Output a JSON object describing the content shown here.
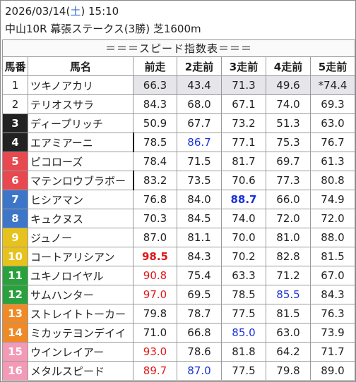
{
  "header": {
    "date": "2026/03/14",
    "weekday_open": "(",
    "weekday": "土",
    "weekday_close": ")",
    "time": "15:10",
    "race": "中山10R 幕張ステークス(3勝) 芝1600m"
  },
  "table": {
    "title": "＝＝＝スピード指数表＝＝＝",
    "columns": [
      "馬番",
      "馬名",
      "前走",
      "2走前",
      "3走前",
      "4走前",
      "5走前"
    ],
    "frame_colors": {
      "1": "#ffffff",
      "2": "#ffffff",
      "3": "#222222",
      "4": "#222222",
      "5": "#e8484f",
      "6": "#e8484f",
      "7": "#3d76c9",
      "8": "#3d76c9",
      "9": "#e8c21c",
      "10": "#e8c21c",
      "11": "#2aa13d",
      "12": "#2aa13d",
      "13": "#f08a26",
      "14": "#f08a26",
      "15": "#f39ab7",
      "16": "#f39ab7"
    },
    "rows": [
      {
        "no": "1",
        "name": "ツキノアカリ",
        "frame": "white",
        "v": [
          "66.3",
          "43.4",
          "71.3",
          "49.6",
          "*74.4"
        ],
        "style": [
          "",
          "",
          "",
          "",
          ""
        ]
      },
      {
        "no": "2",
        "name": "テリオスサラ",
        "frame": "white",
        "v": [
          "84.3",
          "68.0",
          "67.1",
          "74.0",
          "69.3"
        ],
        "style": [
          "",
          "",
          "",
          "",
          ""
        ]
      },
      {
        "no": "3",
        "name": "ディープリッチ",
        "frame": "black",
        "v": [
          "50.9",
          "67.7",
          "73.2",
          "51.3",
          "63.0"
        ],
        "style": [
          "",
          "",
          "",
          "",
          ""
        ]
      },
      {
        "no": "4",
        "name": "エアミアーニ",
        "frame": "black",
        "v": [
          "78.5",
          "86.7",
          "77.1",
          "75.3",
          "76.7"
        ],
        "style": [
          "",
          "blue",
          "",
          "",
          ""
        ]
      },
      {
        "no": "5",
        "name": "ピコローズ",
        "frame": "red",
        "v": [
          "78.4",
          "71.5",
          "81.7",
          "69.7",
          "61.3"
        ],
        "style": [
          "",
          "",
          "",
          "",
          ""
        ]
      },
      {
        "no": "6",
        "name": "マテンロウブラボー",
        "frame": "red",
        "v": [
          "83.2",
          "73.5",
          "70.6",
          "77.3",
          "80.8"
        ],
        "style": [
          "",
          "",
          "",
          "",
          ""
        ]
      },
      {
        "no": "7",
        "name": "ヒシアマン",
        "frame": "blue",
        "v": [
          "76.8",
          "84.0",
          "88.7",
          "66.0",
          "74.9"
        ],
        "style": [
          "",
          "",
          "blue-bold",
          "",
          ""
        ]
      },
      {
        "no": "8",
        "name": "キュクヌス",
        "frame": "blue",
        "v": [
          "70.3",
          "84.5",
          "74.0",
          "72.0",
          "72.0"
        ],
        "style": [
          "",
          "",
          "",
          "",
          ""
        ]
      },
      {
        "no": "9",
        "name": "ジュノー",
        "frame": "yellow",
        "v": [
          "87.0",
          "81.1",
          "70.0",
          "81.0",
          "88.0"
        ],
        "style": [
          "",
          "",
          "",
          "",
          ""
        ]
      },
      {
        "no": "10",
        "name": "コートアリシアン",
        "frame": "yellow",
        "v": [
          "98.5",
          "84.3",
          "70.2",
          "82.8",
          "81.5"
        ],
        "style": [
          "red-bold",
          "",
          "",
          "",
          ""
        ]
      },
      {
        "no": "11",
        "name": "ユキノロイヤル",
        "frame": "green",
        "v": [
          "90.8",
          "75.4",
          "63.3",
          "71.2",
          "67.0"
        ],
        "style": [
          "red",
          "",
          "",
          "",
          ""
        ]
      },
      {
        "no": "12",
        "name": "サムハンター",
        "frame": "green",
        "v": [
          "97.0",
          "69.5",
          "78.5",
          "85.5",
          "84.3"
        ],
        "style": [
          "red",
          "",
          "",
          "blue",
          ""
        ]
      },
      {
        "no": "13",
        "name": "ストレイトトーカー",
        "frame": "orange",
        "v": [
          "79.8",
          "78.7",
          "77.5",
          "81.5",
          "76.3"
        ],
        "style": [
          "",
          "",
          "",
          "",
          ""
        ]
      },
      {
        "no": "14",
        "name": "ミカッテヨンデイイ",
        "frame": "orange",
        "v": [
          "71.0",
          "66.8",
          "85.0",
          "63.0",
          "73.9"
        ],
        "style": [
          "",
          "",
          "blue",
          "",
          ""
        ]
      },
      {
        "no": "15",
        "name": "ウインレイアー",
        "frame": "pink",
        "v": [
          "93.0",
          "78.6",
          "81.8",
          "64.2",
          "71.7"
        ],
        "style": [
          "red",
          "",
          "",
          "",
          ""
        ]
      },
      {
        "no": "16",
        "name": "メタルスピード",
        "frame": "pink",
        "v": [
          "89.7",
          "87.0",
          "77.5",
          "79.8",
          "89.0"
        ],
        "style": [
          "red",
          "blue",
          "",
          "",
          ""
        ]
      }
    ]
  }
}
